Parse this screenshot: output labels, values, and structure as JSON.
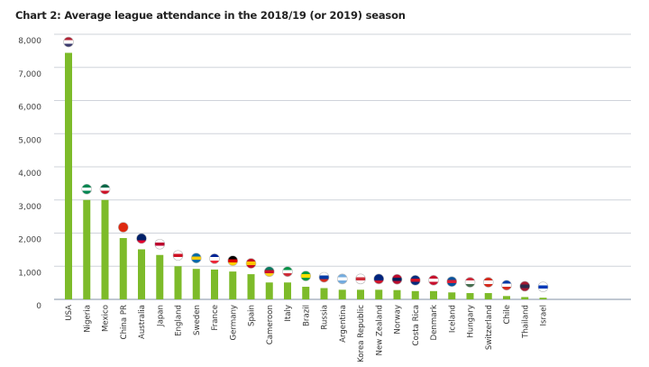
{
  "chart_data": {
    "type": "bar",
    "title": "Chart 2: Average league attendance in the 2018/19 (or 2019) season",
    "xlabel": "",
    "ylabel": "",
    "ylim": [
      0,
      8000
    ],
    "yticks": [
      "0",
      "1,000",
      "2,000",
      "3,000",
      "4,000",
      "5,000",
      "6,000",
      "7,000",
      "8,000"
    ],
    "grid": true,
    "bar_color": "#7dbb2a",
    "categories": [
      "USA",
      "Nigeria",
      "Mexico",
      "China PR",
      "Australia",
      "Japan",
      "England",
      "Sweden",
      "France",
      "Germany",
      "Spain",
      "Cameroon",
      "Italy",
      "Brazil",
      "Russia",
      "Argentina",
      "Korea Republic",
      "New Zealand",
      "Norway",
      "Costa Rica",
      "Denmark",
      "Iceland",
      "Hungary",
      "Switzerland",
      "Chile",
      "Thailand",
      "Israel"
    ],
    "values": [
      7440,
      3000,
      3000,
      1850,
      1510,
      1340,
      1000,
      920,
      900,
      840,
      760,
      510,
      510,
      380,
      340,
      290,
      290,
      290,
      280,
      250,
      250,
      210,
      190,
      190,
      100,
      70,
      50
    ],
    "flags": [
      [
        "#b22234",
        "#ffffff",
        "#3c3b6e"
      ],
      [
        "#008751",
        "#ffffff",
        "#008751"
      ],
      [
        "#006847",
        "#ffffff",
        "#ce1126"
      ],
      [
        "#de2910",
        "#de2910",
        "#de2910"
      ],
      [
        "#012169",
        "#012169",
        "#e4002b"
      ],
      [
        "#ffffff",
        "#bc002d",
        "#ffffff"
      ],
      [
        "#ffffff",
        "#ce1124",
        "#ffffff"
      ],
      [
        "#006aa7",
        "#fecc00",
        "#006aa7"
      ],
      [
        "#002395",
        "#ffffff",
        "#ed2939"
      ],
      [
        "#000000",
        "#dd0000",
        "#ffce00"
      ],
      [
        "#c60b1e",
        "#ffc400",
        "#c60b1e"
      ],
      [
        "#007a5e",
        "#ce1126",
        "#fcd116"
      ],
      [
        "#009246",
        "#ffffff",
        "#ce2b37"
      ],
      [
        "#009c3b",
        "#ffdf00",
        "#009c3b"
      ],
      [
        "#ffffff",
        "#0039a6",
        "#d52b1e"
      ],
      [
        "#74acdf",
        "#ffffff",
        "#74acdf"
      ],
      [
        "#ffffff",
        "#cd2e3a",
        "#ffffff"
      ],
      [
        "#00247d",
        "#00247d",
        "#cc142b"
      ],
      [
        "#ba0c2f",
        "#00205b",
        "#ba0c2f"
      ],
      [
        "#002b7f",
        "#ce1126",
        "#002b7f"
      ],
      [
        "#c8102e",
        "#ffffff",
        "#c8102e"
      ],
      [
        "#02529c",
        "#dc1e35",
        "#02529c"
      ],
      [
        "#ce2939",
        "#ffffff",
        "#477050"
      ],
      [
        "#d52b1e",
        "#ffffff",
        "#d52b1e"
      ],
      [
        "#0039a6",
        "#ffffff",
        "#d52b1e"
      ],
      [
        "#a51931",
        "#2d2a4a",
        "#a51931"
      ],
      [
        "#ffffff",
        "#0038b8",
        "#ffffff"
      ]
    ]
  }
}
